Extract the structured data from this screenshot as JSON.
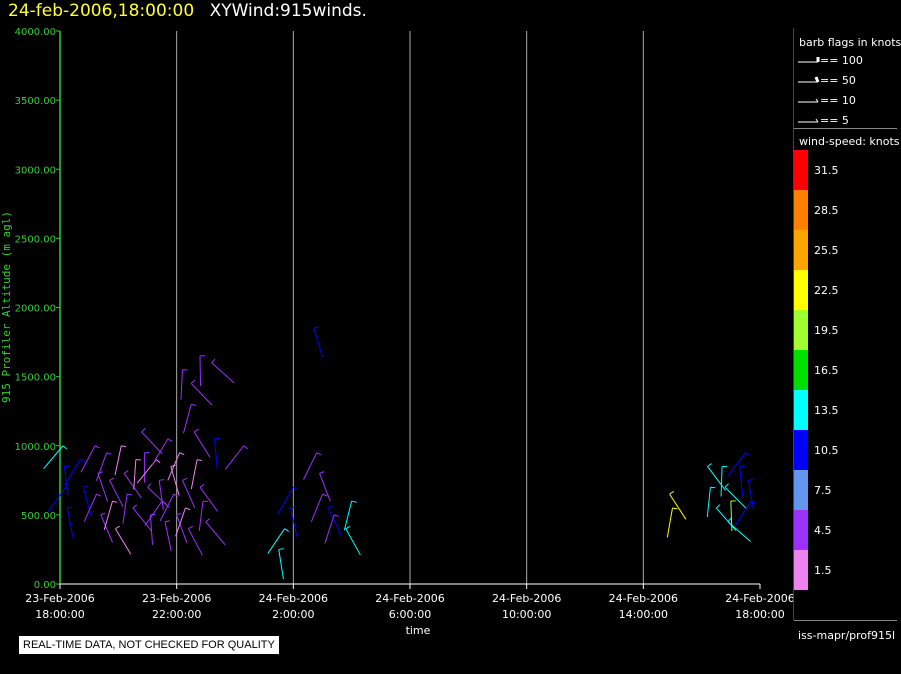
{
  "header": {
    "date_time": "24-feb-2006,18:00:00",
    "product": "XYWind:915winds."
  },
  "footer": {
    "quality_notice": "REAL-TIME DATA, NOT CHECKED FOR QUALITY"
  },
  "legend": {
    "barb_title": "barb flags in knots",
    "barbs": [
      {
        "label": "== 100"
      },
      {
        "label": "== 50"
      },
      {
        "label": "== 10"
      },
      {
        "label": "== 5"
      }
    ],
    "speed_title": "wind-speed: knots",
    "source": "iss-mapr/prof915l",
    "color_scale": [
      {
        "label": "31.5",
        "color": "#ff0000"
      },
      {
        "label": "28.5",
        "color": "#ff8000"
      },
      {
        "label": "25.5",
        "color": "#ffa500"
      },
      {
        "label": "22.5",
        "color": "#ffff00"
      },
      {
        "label": "19.5",
        "color": "#a0ff30"
      },
      {
        "label": "16.5",
        "color": "#00e000"
      },
      {
        "label": "13.5",
        "color": "#00ffff"
      },
      {
        "label": "10.5",
        "color": "#0000ff"
      },
      {
        "label": "7.5",
        "color": "#6495ed"
      },
      {
        "label": "4.5",
        "color": "#9b30ff"
      },
      {
        "label": "1.5",
        "color": "#ee82ee"
      }
    ]
  },
  "chart_data": {
    "type": "scatter",
    "xlabel": "time",
    "ylabel": "915 Profiler Altitude (m agl)",
    "ylim": [
      0,
      4000
    ],
    "xlim_hours": [
      0,
      24
    ],
    "y_ticks": [
      "0.00",
      "500.00",
      "1000.00",
      "1500.00",
      "2000.00",
      "2500.00",
      "3000.00",
      "3500.00",
      "4000.00"
    ],
    "x_ticks": [
      {
        "date": "23-Feb-2006",
        "time": "18:00:00"
      },
      {
        "date": "23-Feb-2006",
        "time": "22:00:00"
      },
      {
        "date": "24-Feb-2006",
        "time": "2:00:00"
      },
      {
        "date": "24-Feb-2006",
        "time": "6:00:00"
      },
      {
        "date": "24-Feb-2006",
        "time": "10:00:00"
      },
      {
        "date": "24-Feb-2006",
        "time": "14:00:00"
      },
      {
        "date": "24-Feb-2006",
        "time": "18:00:00"
      }
    ],
    "grid": "vertical",
    "wind_barbs": [
      {
        "t": 0.1,
        "alt": 1000,
        "speed": 13.5
      },
      {
        "t": 0.15,
        "alt": 850,
        "speed": 10.5
      },
      {
        "t": 0.2,
        "alt": 700,
        "speed": 10.5
      },
      {
        "t": 0.25,
        "alt": 550,
        "speed": 10.5
      },
      {
        "t": 0.7,
        "alt": 900,
        "speed": 10.5
      },
      {
        "t": 0.8,
        "alt": 700,
        "speed": 10.5
      },
      {
        "t": 1.2,
        "alt": 1000,
        "speed": 4.5
      },
      {
        "t": 1.3,
        "alt": 800,
        "speed": 4.5
      },
      {
        "t": 1.25,
        "alt": 650,
        "speed": 4.5
      },
      {
        "t": 1.4,
        "alt": 500,
        "speed": 4.5
      },
      {
        "t": 1.6,
        "alt": 950,
        "speed": 4.5
      },
      {
        "t": 1.7,
        "alt": 750,
        "speed": 4.5
      },
      {
        "t": 1.8,
        "alt": 600,
        "speed": 1.5
      },
      {
        "t": 1.9,
        "alt": 400,
        "speed": 1.5
      },
      {
        "t": 2.1,
        "alt": 1000,
        "speed": 1.5
      },
      {
        "t": 2.2,
        "alt": 800,
        "speed": 4.5
      },
      {
        "t": 2.3,
        "alt": 650,
        "speed": 4.5
      },
      {
        "t": 2.5,
        "alt": 550,
        "speed": 4.5
      },
      {
        "t": 2.6,
        "alt": 900,
        "speed": 1.5
      },
      {
        "t": 2.8,
        "alt": 1100,
        "speed": 4.5
      },
      {
        "t": 2.9,
        "alt": 950,
        "speed": 4.5
      },
      {
        "t": 3.0,
        "alt": 700,
        "speed": 4.5
      },
      {
        "t": 3.1,
        "alt": 500,
        "speed": 4.5
      },
      {
        "t": 3.3,
        "alt": 900,
        "speed": 1.5
      },
      {
        "t": 3.4,
        "alt": 750,
        "speed": 4.5
      },
      {
        "t": 3.5,
        "alt": 600,
        "speed": 4.5
      },
      {
        "t": 3.6,
        "alt": 450,
        "speed": 4.5
      },
      {
        "t": 3.7,
        "alt": 1050,
        "speed": 4.5
      },
      {
        "t": 3.8,
        "alt": 850,
        "speed": 1.5
      },
      {
        "t": 3.9,
        "alt": 650,
        "speed": 4.5
      },
      {
        "t": 4.0,
        "alt": 500,
        "speed": 4.5
      },
      {
        "t": 4.1,
        "alt": 950,
        "speed": 1.5
      },
      {
        "t": 4.2,
        "alt": 750,
        "speed": 4.5
      },
      {
        "t": 4.3,
        "alt": 550,
        "speed": 1.5
      },
      {
        "t": 4.4,
        "alt": 400,
        "speed": 4.5
      },
      {
        "t": 4.5,
        "alt": 1300,
        "speed": 4.5
      },
      {
        "t": 4.6,
        "alt": 1100,
        "speed": 4.5
      },
      {
        "t": 4.7,
        "alt": 900,
        "speed": 1.5
      },
      {
        "t": 4.8,
        "alt": 700,
        "speed": 4.5
      },
      {
        "t": 4.9,
        "alt": 600,
        "speed": 4.5
      },
      {
        "t": 5.0,
        "alt": 450,
        "speed": 4.5
      },
      {
        "t": 4.2,
        "alt": 1550,
        "speed": 4.5
      },
      {
        "t": 4.5,
        "alt": 1450,
        "speed": 4.5
      },
      {
        "t": 4.8,
        "alt": 1650,
        "speed": 4.5
      },
      {
        "t": 5.2,
        "alt": 1600,
        "speed": 4.5
      },
      {
        "t": 5.3,
        "alt": 1050,
        "speed": 10.5
      },
      {
        "t": 6.3,
        "alt": 1000,
        "speed": 4.5
      },
      {
        "t": 7.5,
        "alt": 250,
        "speed": 13.5
      },
      {
        "t": 7.7,
        "alt": 400,
        "speed": 13.5
      },
      {
        "t": 7.9,
        "alt": 550,
        "speed": 10.5
      },
      {
        "t": 8.0,
        "alt": 700,
        "speed": 10.5
      },
      {
        "t": 8.7,
        "alt": 1850,
        "speed": 10.5
      },
      {
        "t": 8.8,
        "alt": 950,
        "speed": 4.5
      },
      {
        "t": 8.9,
        "alt": 800,
        "speed": 4.5
      },
      {
        "t": 9.0,
        "alt": 650,
        "speed": 4.5
      },
      {
        "t": 9.2,
        "alt": 550,
        "speed": 10.5
      },
      {
        "t": 9.4,
        "alt": 500,
        "speed": 4.5
      },
      {
        "t": 9.8,
        "alt": 400,
        "speed": 13.5
      },
      {
        "t": 10.0,
        "alt": 600,
        "speed": 13.5
      },
      {
        "t": 20.9,
        "alt": 650,
        "speed": 22.5
      },
      {
        "t": 21.0,
        "alt": 550,
        "speed": 22.5
      },
      {
        "t": 22.2,
        "alt": 850,
        "speed": 13.5
      },
      {
        "t": 22.3,
        "alt": 700,
        "speed": 13.5
      },
      {
        "t": 22.5,
        "alt": 550,
        "speed": 13.5
      },
      {
        "t": 22.7,
        "alt": 850,
        "speed": 13.5
      },
      {
        "t": 22.8,
        "alt": 700,
        "speed": 13.5
      },
      {
        "t": 23.0,
        "alt": 600,
        "speed": 19.5
      },
      {
        "t": 22.9,
        "alt": 450,
        "speed": 13.5
      },
      {
        "t": 23.3,
        "alt": 850,
        "speed": 10.5
      },
      {
        "t": 23.5,
        "alt": 950,
        "speed": 10.5
      },
      {
        "t": 23.6,
        "alt": 750,
        "speed": 10.5
      },
      {
        "t": 23.7,
        "alt": 600,
        "speed": 10.5
      }
    ]
  }
}
